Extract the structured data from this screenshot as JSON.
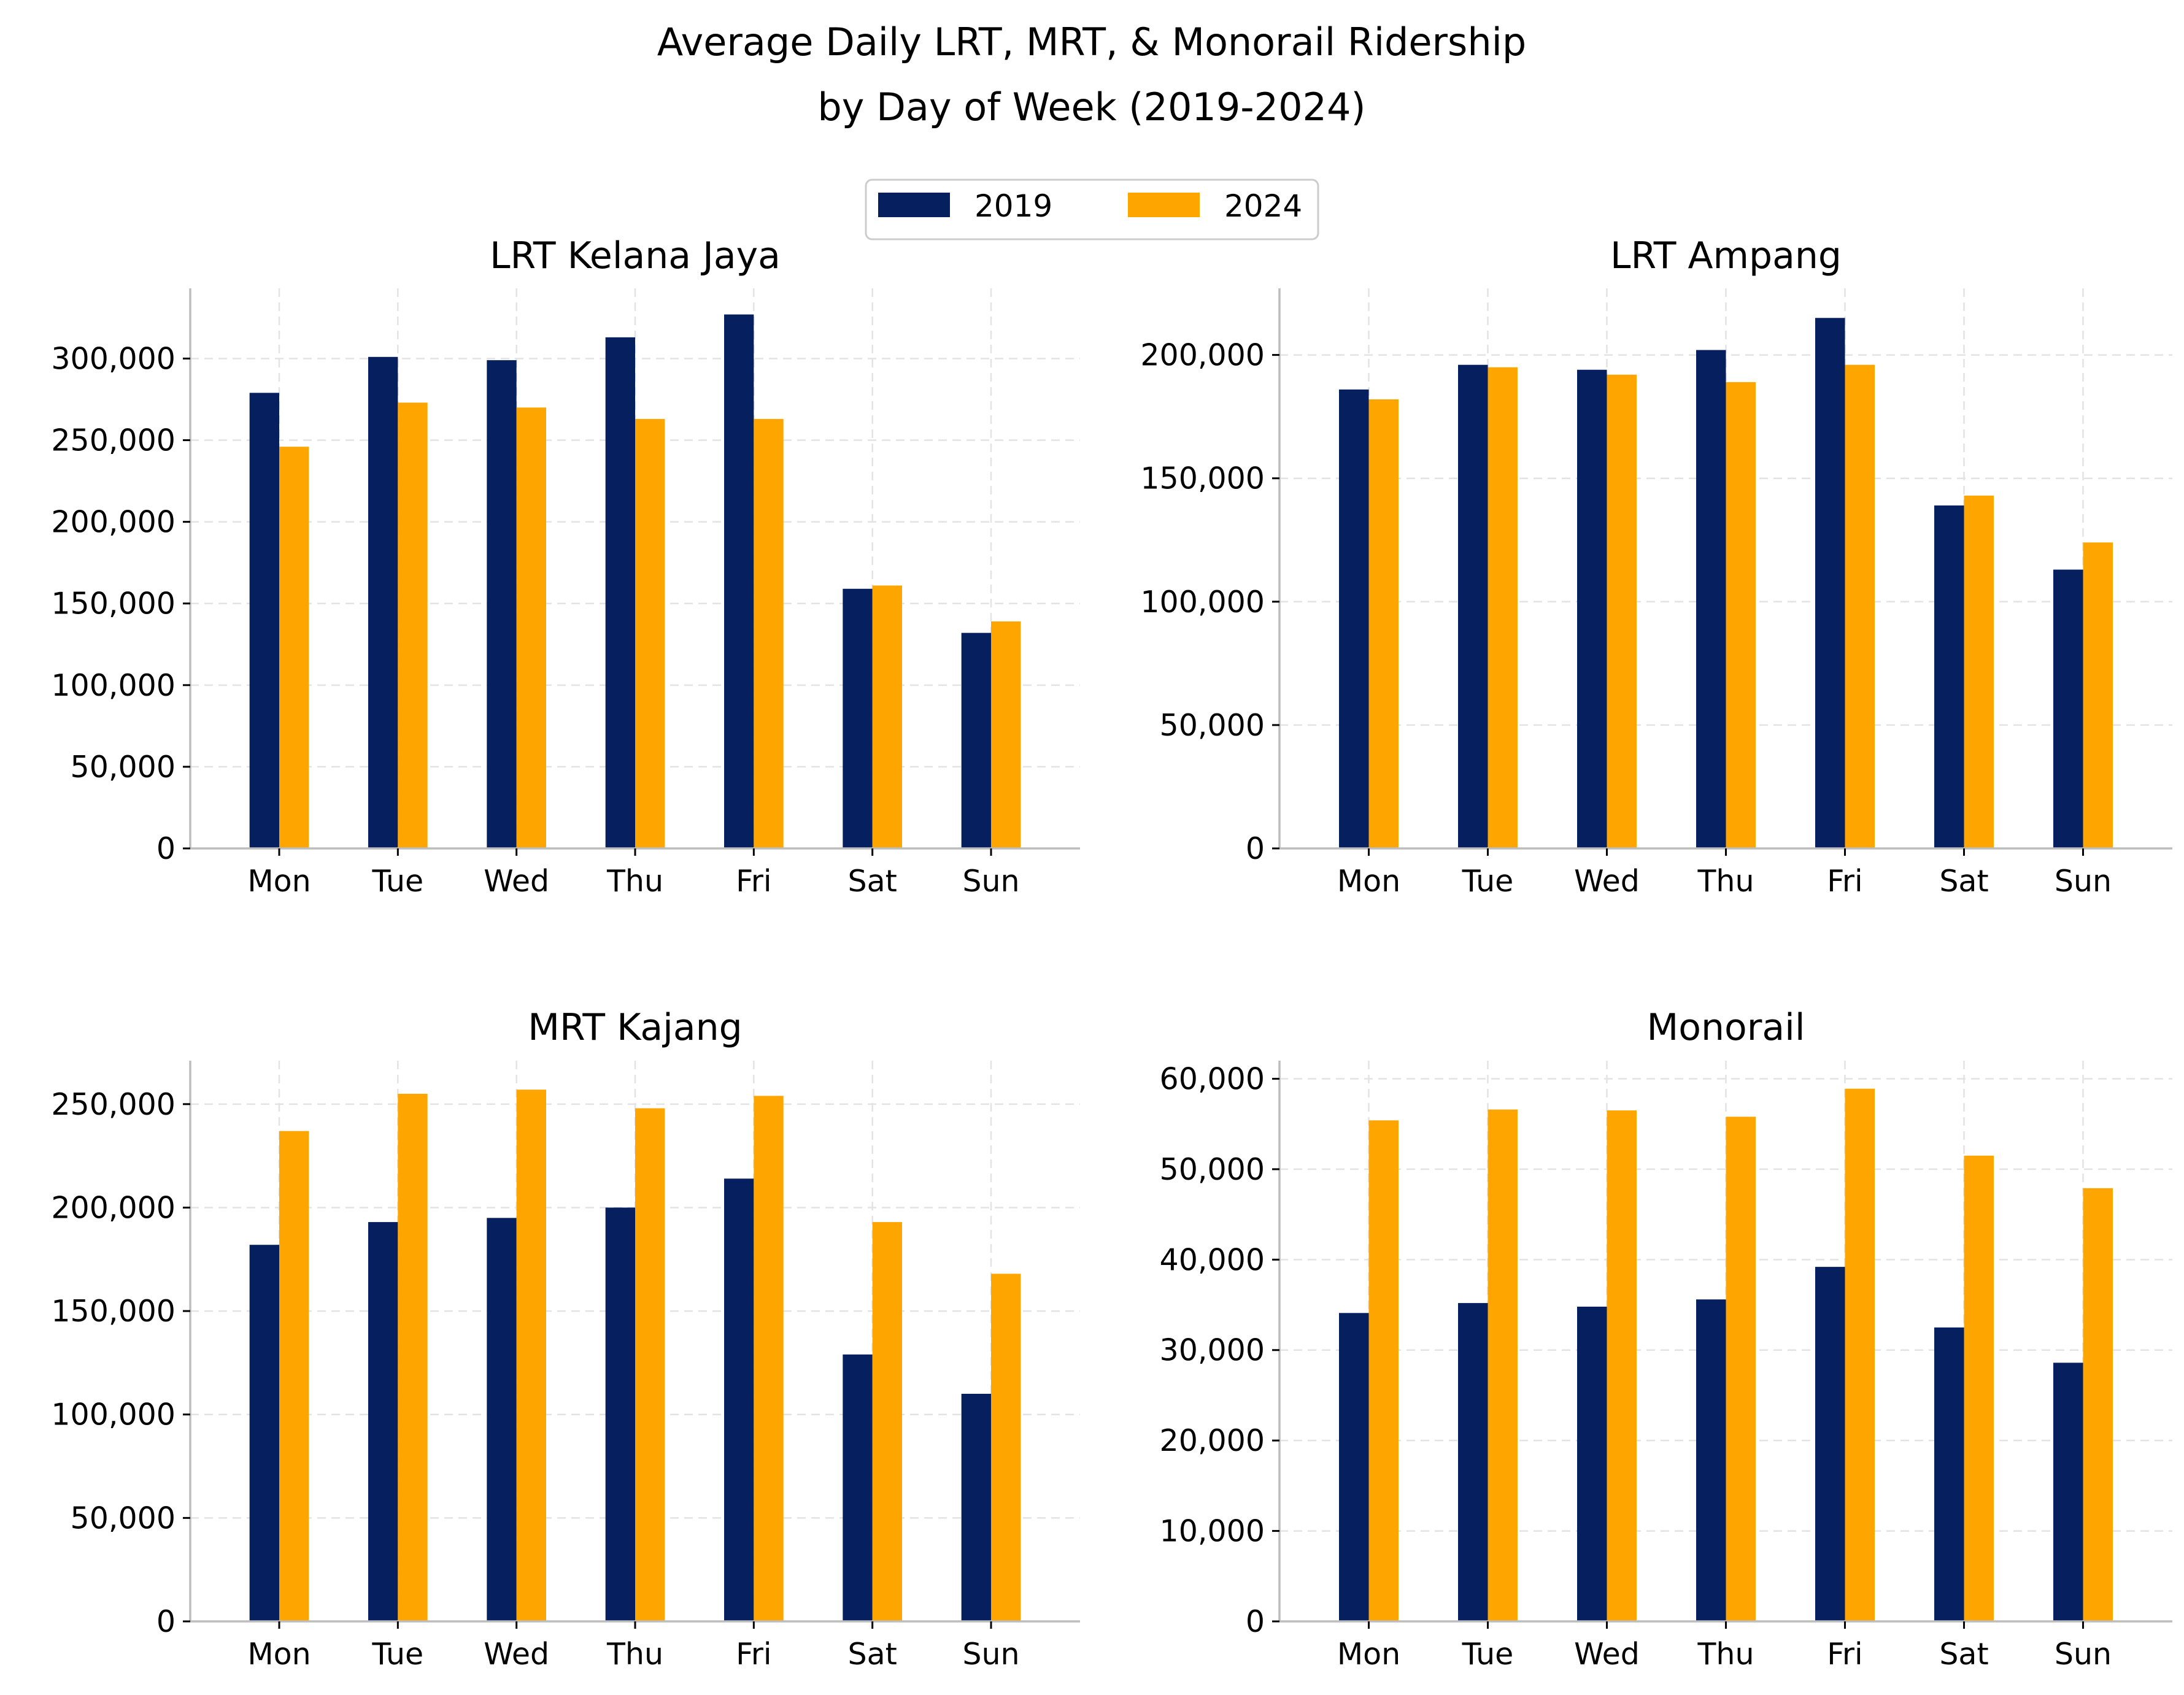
{
  "title_line1": "Average Daily LRT, MRT, & Monorail Ridership",
  "title_line2": "by Day of Week (2019-2024)",
  "colors": {
    "series_2019": "#061f5f",
    "series_2024": "#ffa500"
  },
  "legend": {
    "position": "top-center",
    "entries": [
      "2019",
      "2024"
    ]
  },
  "chart_data": [
    {
      "type": "bar",
      "title": "LRT Kelana Jaya",
      "categories": [
        "Mon",
        "Tue",
        "Wed",
        "Thu",
        "Fri",
        "Sat",
        "Sun"
      ],
      "series": [
        {
          "name": "2019",
          "values": [
            279000,
            301000,
            299000,
            313000,
            327000,
            159000,
            132000
          ]
        },
        {
          "name": "2024",
          "values": [
            246000,
            273000,
            270000,
            263000,
            263000,
            161000,
            139000
          ]
        }
      ],
      "ylim": [
        0,
        343000
      ],
      "yticks": [
        0,
        50000,
        100000,
        150000,
        200000,
        250000,
        300000
      ],
      "ytick_labels": [
        "0",
        "50,000",
        "100,000",
        "150,000",
        "200,000",
        "250,000",
        "300,000"
      ],
      "grid": true
    },
    {
      "type": "bar",
      "title": "LRT Ampang",
      "categories": [
        "Mon",
        "Tue",
        "Wed",
        "Thu",
        "Fri",
        "Sat",
        "Sun"
      ],
      "series": [
        {
          "name": "2019",
          "values": [
            186000,
            196000,
            194000,
            202000,
            215000,
            139000,
            113000
          ]
        },
        {
          "name": "2024",
          "values": [
            182000,
            195000,
            192000,
            189000,
            196000,
            143000,
            124000
          ]
        }
      ],
      "ylim": [
        0,
        227000
      ],
      "yticks": [
        0,
        50000,
        100000,
        150000,
        200000
      ],
      "ytick_labels": [
        "0",
        "50,000",
        "100,000",
        "150,000",
        "200,000"
      ],
      "grid": true
    },
    {
      "type": "bar",
      "title": "MRT Kajang",
      "categories": [
        "Mon",
        "Tue",
        "Wed",
        "Thu",
        "Fri",
        "Sat",
        "Sun"
      ],
      "series": [
        {
          "name": "2019",
          "values": [
            182000,
            193000,
            195000,
            200000,
            214000,
            129000,
            110000
          ]
        },
        {
          "name": "2024",
          "values": [
            237000,
            255000,
            257000,
            248000,
            254000,
            193000,
            168000
          ]
        }
      ],
      "ylim": [
        0,
        271000
      ],
      "yticks": [
        0,
        50000,
        100000,
        150000,
        200000,
        250000
      ],
      "ytick_labels": [
        "0",
        "50,000",
        "100,000",
        "150,000",
        "200,000",
        "250,000"
      ],
      "grid": true
    },
    {
      "type": "bar",
      "title": "Monorail",
      "categories": [
        "Mon",
        "Tue",
        "Wed",
        "Thu",
        "Fri",
        "Sat",
        "Sun"
      ],
      "series": [
        {
          "name": "2019",
          "values": [
            34100,
            35200,
            34800,
            35600,
            39200,
            32500,
            28600
          ]
        },
        {
          "name": "2024",
          "values": [
            55400,
            56600,
            56500,
            55800,
            58900,
            51500,
            47900
          ]
        }
      ],
      "ylim": [
        0,
        62000
      ],
      "yticks": [
        0,
        10000,
        20000,
        30000,
        40000,
        50000,
        60000
      ],
      "ytick_labels": [
        "0",
        "10,000",
        "20,000",
        "30,000",
        "40,000",
        "50,000",
        "60,000"
      ],
      "grid": true
    }
  ]
}
